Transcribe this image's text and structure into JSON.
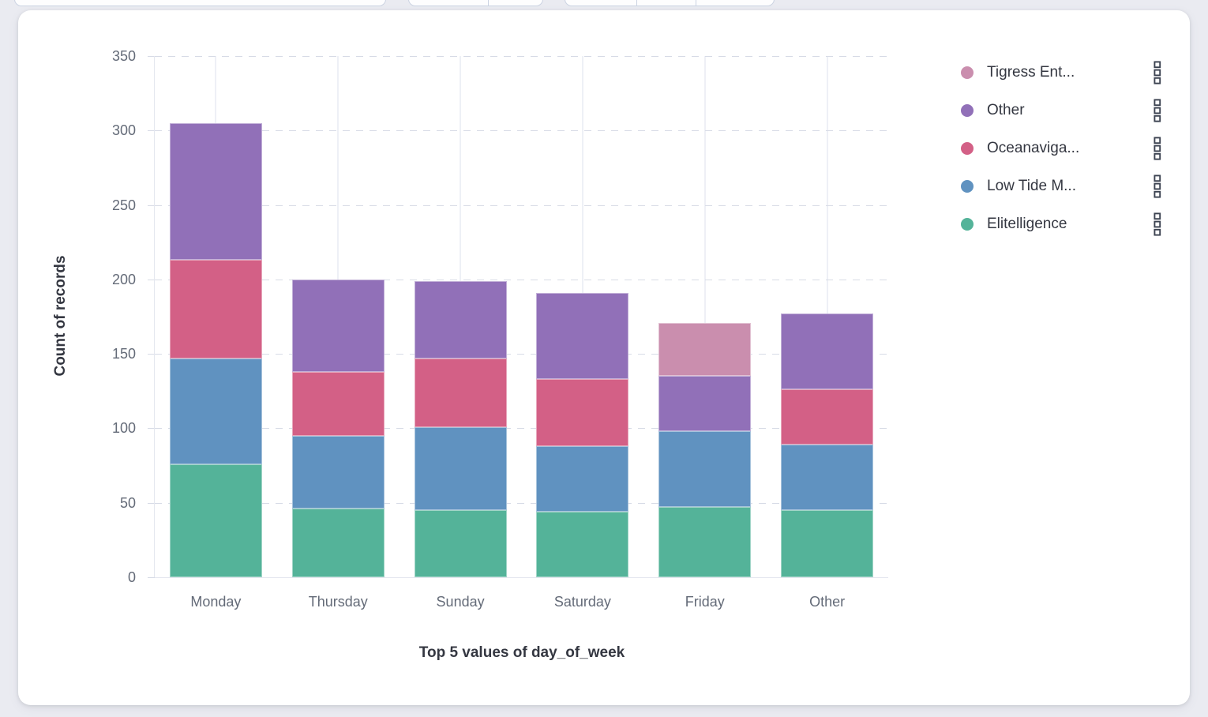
{
  "ui_colors": {
    "page_background": "#eaebf1",
    "panel_background": "#ffffff",
    "axis_tick_text": "#646b78",
    "axis_title_text": "#343741",
    "legend_text": "#343741",
    "gridline_dashed": "#d7dbe6",
    "gridline_vertical": "#eef0f6",
    "toolbar_border": "#cbd3e2"
  },
  "chart_data": {
    "type": "bar",
    "stacked": true,
    "orientation": "vertical",
    "title": "",
    "xlabel": "Top 5 values of day_of_week",
    "ylabel": "Count of records",
    "categories": [
      "Monday",
      "Thursday",
      "Sunday",
      "Saturday",
      "Friday",
      "Other"
    ],
    "series": [
      {
        "name": "Elitelligence",
        "color": "#54B399",
        "values": [
          76,
          46,
          45,
          44,
          47,
          45
        ]
      },
      {
        "name": "Low Tide M...",
        "color": "#6092C0",
        "values": [
          71,
          49,
          56,
          44,
          51,
          44
        ]
      },
      {
        "name": "Oceanaviga...",
        "color": "#D36086",
        "values": [
          66,
          43,
          46,
          45,
          0,
          37
        ]
      },
      {
        "name": "Other",
        "color": "#9170B8",
        "values": [
          92,
          62,
          52,
          58,
          37,
          51
        ]
      },
      {
        "name": "Tigress Ent...",
        "color": "#CA8EAE",
        "values": [
          0,
          0,
          0,
          0,
          36,
          0
        ]
      }
    ],
    "stack_totals": [
      305,
      200,
      199,
      191,
      171,
      177
    ],
    "ylim": [
      0,
      350
    ],
    "yticks": [
      0,
      50,
      100,
      150,
      200,
      250,
      300,
      350
    ],
    "grid": {
      "horizontal": "dashed",
      "vertical": "solid-at-category-centers"
    },
    "legend": {
      "position": "right",
      "order_top_to_bottom": [
        "Tigress Ent...",
        "Other",
        "Oceanaviga...",
        "Low Tide M...",
        "Elitelligence"
      ],
      "item_action_icon": "boxes-vertical-icon"
    }
  }
}
